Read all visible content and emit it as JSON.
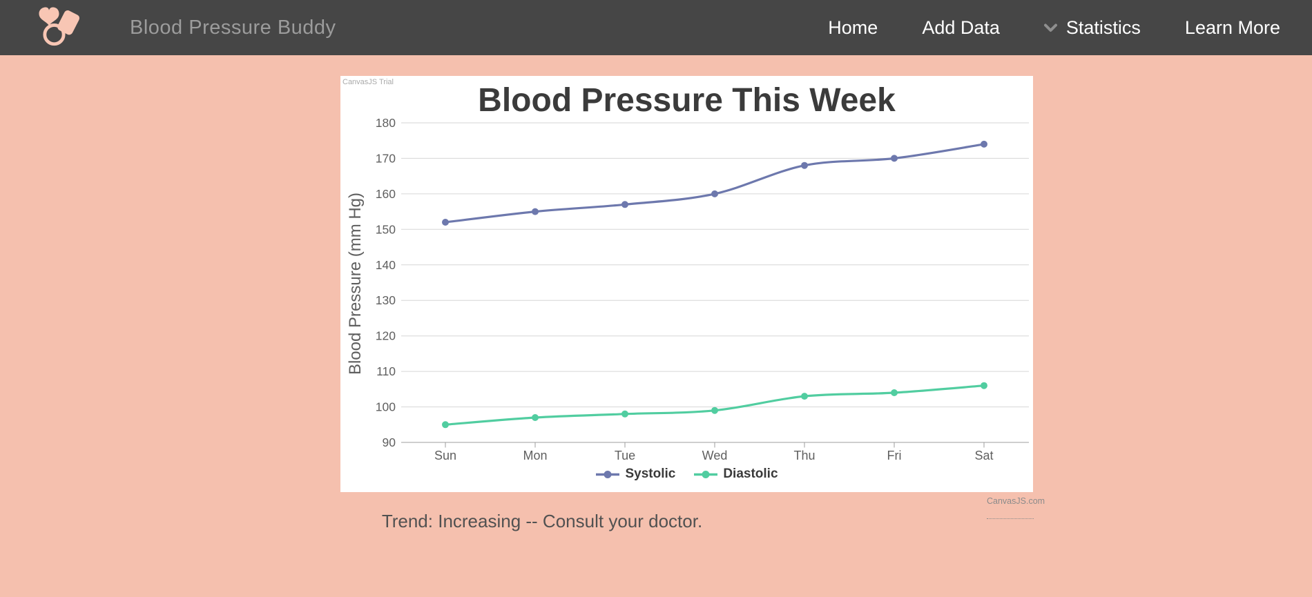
{
  "navbar": {
    "brand": "Blood Pressure Buddy",
    "items": [
      {
        "id": "home",
        "label": "Home"
      },
      {
        "id": "add-data",
        "label": "Add Data"
      },
      {
        "id": "statistics",
        "label": "Statistics",
        "has_chevron": true
      },
      {
        "id": "learn-more",
        "label": "Learn More"
      }
    ]
  },
  "chart_data": {
    "type": "line",
    "title": "Blood Pressure This Week",
    "categories": [
      "Sun",
      "Mon",
      "Tue",
      "Wed",
      "Thu",
      "Fri",
      "Sat"
    ],
    "series": [
      {
        "name": "Systolic",
        "color": "#6d78ad",
        "values": [
          152,
          155,
          157,
          160,
          168,
          170,
          174
        ]
      },
      {
        "name": "Diastolic",
        "color": "#51cda0",
        "values": [
          95,
          97,
          98,
          99,
          103,
          104,
          106
        ]
      }
    ],
    "xlabel": "",
    "ylabel": "Blood Pressure (mm Hg)",
    "ylim": [
      90,
      180
    ],
    "ytick_step": 10,
    "grid": true,
    "line_style": "spline",
    "legend_position": "bottom",
    "watermark": "CanvasJS Trial",
    "credit": "CanvasJS.com"
  },
  "trend_note": "Trend: Increasing -- Consult your doctor.",
  "colors": {
    "page_bg": "#f5c0ae",
    "navbar_bg": "#464646",
    "brand_text": "#9c9c9c",
    "nav_link": "#ffffff",
    "chevron": "#8f8f8f",
    "logo": "#f8c6b4",
    "card_bg": "#ffffff",
    "title_text": "#3b3b3b",
    "axis_label": "#5f5f5f",
    "gridline": "#d6d6d6",
    "axis_line": "#9e9e9e",
    "legend_text": "#3a3a3a",
    "trend_text": "#515151",
    "credit_text": "#8b8b8b"
  }
}
